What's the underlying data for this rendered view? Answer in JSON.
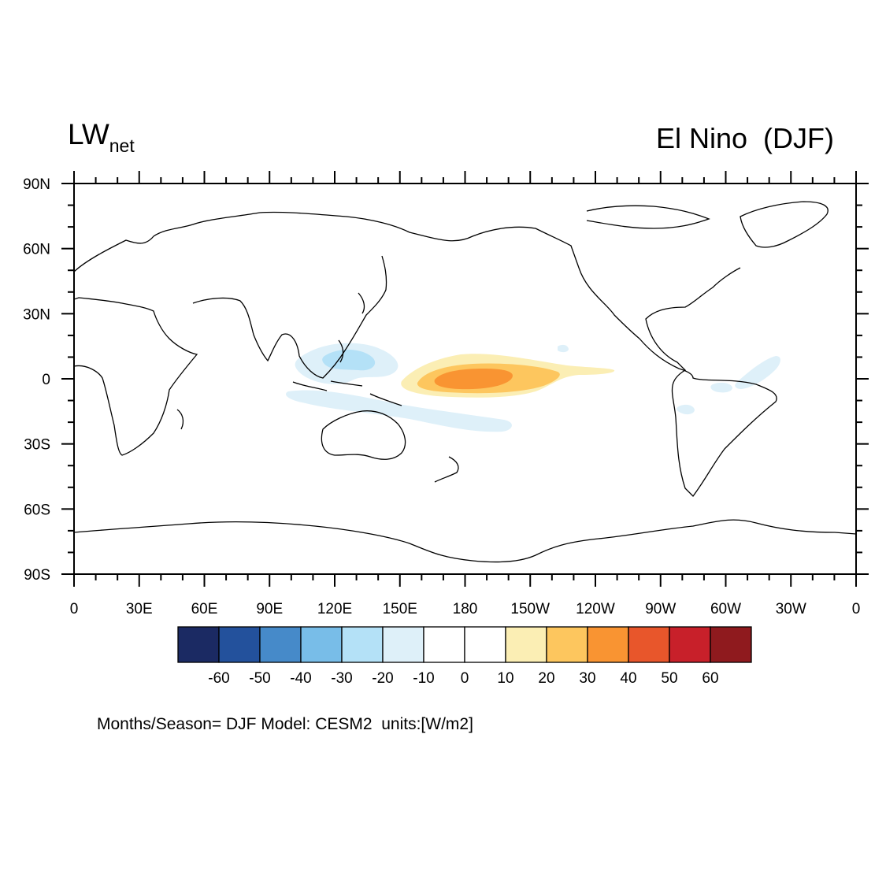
{
  "title": {
    "main": "LW",
    "subscript": "net",
    "right": "El Nino  (DJF)"
  },
  "footer": "Months/Season= DJF Model: CESM2  units:[W/m2]",
  "chart_data": {
    "type": "contour-map",
    "variable": "LWnet",
    "case": "El Nino",
    "season": "DJF",
    "model": "CESM2",
    "units": "W/m2",
    "projection": "cylindrical equidistant",
    "lon_range": [
      0,
      360
    ],
    "lat_range": [
      -90,
      90
    ],
    "lon_ticks": [
      0,
      30,
      60,
      90,
      120,
      150,
      180,
      210,
      240,
      270,
      300,
      330,
      360
    ],
    "lon_tick_labels": [
      "0",
      "30E",
      "60E",
      "90E",
      "120E",
      "150E",
      "180",
      "150W",
      "120W",
      "90W",
      "60W",
      "30W",
      "0"
    ],
    "lat_ticks": [
      90,
      60,
      30,
      0,
      -30,
      -60,
      -90
    ],
    "lat_tick_labels": [
      "90N",
      "60N",
      "30N",
      "0",
      "30S",
      "60S",
      "90S"
    ],
    "colorbar": {
      "levels": [
        -60,
        -50,
        -40,
        -30,
        -20,
        -10,
        0,
        10,
        20,
        30,
        40,
        50,
        60
      ],
      "labels": [
        "-60",
        "-50",
        "-40",
        "-30",
        "-20",
        "-10",
        "0",
        "10",
        "20",
        "30",
        "40",
        "50",
        "60"
      ],
      "colors": [
        "#1b2a63",
        "#23519c",
        "#468ac9",
        "#78bde8",
        "#b4e1f7",
        "#def0f9",
        "#ffffff",
        "#ffffff",
        "#fbeeb4",
        "#fdc65e",
        "#f99432",
        "#e8562b",
        "#c8202a",
        "#8f1a1e"
      ]
    },
    "features": [
      {
        "name": "central-pacific-positive",
        "range": "10 to 40",
        "lon_range": [
          150,
          260
        ],
        "lat_range": [
          -9,
          5
        ],
        "max_at": [
          185,
          0
        ]
      },
      {
        "name": "western-pacific-negative",
        "range": "-20 to -10",
        "lon_range": [
          105,
          145
        ],
        "lat_range": [
          -5,
          15
        ]
      },
      {
        "name": "south-pacific-negative",
        "range": "-20 to -10",
        "lon_range": [
          95,
          200
        ],
        "lat_range": [
          -25,
          -5
        ]
      },
      {
        "name": "atlantic-negative",
        "range": "-10 to -20",
        "lon_range": [
          290,
          330
        ],
        "lat_range": [
          -5,
          10
        ]
      }
    ]
  }
}
